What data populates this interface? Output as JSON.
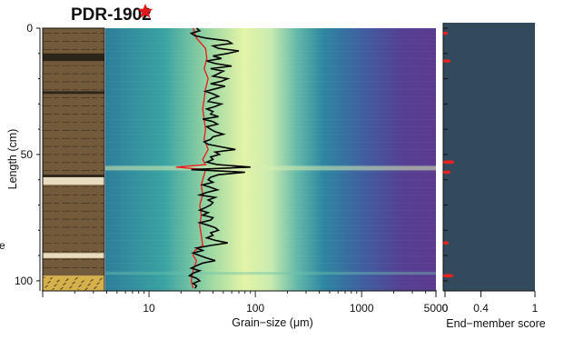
{
  "title": "PDR-1902",
  "colors": {
    "background": "#ffffff",
    "heatmap_low": "#5a3f8c",
    "heatmap_mid": "#2b8f9e",
    "heatmap_high": "#e8f5a8",
    "median_line": "#e8231f",
    "mean_line": "#000000",
    "endmember_bg": "#334a5c",
    "endmember_series": "#e8231f",
    "lith_mud": "#735a3a",
    "lith_dark": "#2b2418",
    "lith_light": "#e8dcc0",
    "lith_sand": "#d6b04a",
    "star": "#e0191b"
  },
  "icons": {
    "title_marker": "star-icon"
  },
  "chart_data": [
    {
      "type": "log",
      "panel": "lithology",
      "ylabel": "Length (cm)",
      "ylim": [
        0,
        104
      ],
      "yticks": [
        0,
        50,
        100
      ],
      "light_layers_cm": [
        [
          59,
          62
        ],
        [
          89,
          91
        ]
      ],
      "dark_layers_cm": [
        [
          10,
          13
        ],
        [
          25,
          26
        ],
        [
          58,
          59
        ],
        [
          100,
          101
        ]
      ],
      "sand_layer_cm": [
        98,
        104
      ]
    },
    {
      "type": "heatmap",
      "panel": "grain-size",
      "xlabel": "Grain−size (μm)",
      "xscale": "log",
      "xlim": [
        1,
        5000
      ],
      "xticks": [
        10,
        100,
        1000,
        5000
      ],
      "ylim": [
        0,
        104
      ],
      "series": [
        {
          "role": "black",
          "color": "#000000",
          "depth_cm": [
            0,
            1,
            2,
            3,
            4,
            5,
            6,
            7,
            8,
            9,
            10,
            11,
            12,
            13,
            14,
            15,
            16,
            17,
            18,
            19,
            20,
            21,
            22,
            23,
            24,
            25,
            26,
            27,
            28,
            29,
            30,
            31,
            32,
            33,
            34,
            35,
            36,
            37,
            38,
            39,
            40,
            41,
            42,
            43,
            44,
            45,
            46,
            47,
            48,
            49,
            50,
            51,
            52,
            53,
            54,
            55,
            56,
            57,
            58,
            59,
            60,
            61,
            62,
            63,
            64,
            65,
            66,
            67,
            68,
            69,
            70,
            71,
            72,
            73,
            74,
            75,
            76,
            77,
            78,
            79,
            80,
            81,
            82,
            83,
            84,
            85,
            86,
            87,
            88,
            89,
            90,
            91,
            92,
            93,
            94,
            95,
            96,
            97,
            98,
            99,
            100,
            101,
            102,
            103
          ],
          "values_um": [
            28,
            30,
            25,
            27,
            35,
            55,
            60,
            40,
            45,
            70,
            55,
            40,
            48,
            35,
            42,
            60,
            38,
            50,
            45,
            40,
            55,
            48,
            38,
            52,
            42,
            34,
            40,
            45,
            38,
            36,
            48,
            42,
            35,
            40,
            38,
            45,
            32,
            40,
            44,
            35,
            38,
            42,
            50,
            40,
            38,
            33,
            36,
            48,
            65,
            42,
            46,
            38,
            40,
            35,
            44,
            90,
            25,
            80,
            45,
            38,
            36,
            40,
            32,
            38,
            44,
            35,
            30,
            42,
            36,
            40,
            38,
            34,
            30,
            36,
            32,
            40,
            38,
            30,
            36,
            42,
            45,
            38,
            40,
            35,
            42,
            55,
            38,
            28,
            32,
            26,
            30,
            35,
            42,
            32,
            28,
            25,
            30,
            26,
            24,
            28,
            30,
            26,
            28,
            27
          ]
        },
        {
          "role": "red",
          "color": "#e8231f",
          "depth_cm": [
            0,
            4,
            8,
            12,
            16,
            20,
            24,
            28,
            32,
            36,
            40,
            44,
            48,
            52,
            54,
            55,
            56,
            58,
            62,
            66,
            70,
            74,
            78,
            82,
            86,
            88,
            90,
            92,
            96,
            100,
            103
          ],
          "values_um": [
            26,
            28,
            34,
            35,
            33,
            36,
            34,
            33,
            32,
            33,
            34,
            33,
            36,
            32,
            34,
            18,
            34,
            33,
            31,
            32,
            30,
            31,
            30,
            31,
            32,
            27,
            26,
            28,
            26,
            25,
            26
          ]
        }
      ]
    },
    {
      "type": "bar",
      "panel": "end-member",
      "xlabel": "End−member score",
      "xlim": [
        0,
        1
      ],
      "xticks": [
        0,
        0.4,
        1
      ],
      "ylim": [
        0,
        104
      ],
      "points": [
        {
          "depth_cm": 2,
          "score": 0.01
        },
        {
          "depth_cm": 13,
          "score": 0.04
        },
        {
          "depth_cm": 53,
          "score": 0.08
        },
        {
          "depth_cm": 57,
          "score": 0.04
        },
        {
          "depth_cm": 85,
          "score": 0.02
        },
        {
          "depth_cm": 98,
          "score": 0.07
        }
      ]
    }
  ]
}
